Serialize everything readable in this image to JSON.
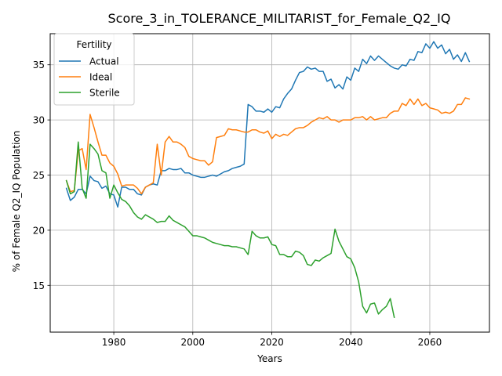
{
  "chart_data": {
    "type": "line",
    "title": "Score_3_in_TOLERANCE_MILITARIST_for_Female_Q2_IQ",
    "xlabel": "Years",
    "ylabel": "% of Female Q2_IQ Population",
    "xlim": [
      1963.9,
      2075.1
    ],
    "ylim": [
      10.76,
      37.82
    ],
    "xticks": [
      1980,
      2000,
      2020,
      2040,
      2060
    ],
    "yticks": [
      15,
      20,
      25,
      30,
      35
    ],
    "grid": true,
    "legend": {
      "title": "Fertility",
      "placement": "top-left"
    },
    "series": [
      {
        "name": "Actual",
        "color": "#1f77b4",
        "points": [
          [
            1968,
            23.8
          ],
          [
            1969,
            22.7
          ],
          [
            1970,
            23.0
          ],
          [
            1971,
            23.7
          ],
          [
            1972,
            23.7
          ],
          [
            1973,
            23.3
          ],
          [
            1974,
            24.9
          ],
          [
            1975,
            24.5
          ],
          [
            1976,
            24.4
          ],
          [
            1977,
            23.8
          ],
          [
            1978,
            24.0
          ],
          [
            1979,
            23.3
          ],
          [
            1980,
            23.2
          ],
          [
            1981,
            22.1
          ],
          [
            1982,
            23.9
          ],
          [
            1983,
            23.9
          ],
          [
            1984,
            23.7
          ],
          [
            1985,
            23.7
          ],
          [
            1986,
            23.3
          ],
          [
            1987,
            23.2
          ],
          [
            1988,
            23.9
          ],
          [
            1989,
            24.1
          ],
          [
            1990,
            24.2
          ],
          [
            1991,
            24.1
          ],
          [
            1992,
            25.4
          ],
          [
            1993,
            25.4
          ],
          [
            1994,
            25.6
          ],
          [
            1995,
            25.5
          ],
          [
            1996,
            25.5
          ],
          [
            1997,
            25.6
          ],
          [
            1998,
            25.2
          ],
          [
            1999,
            25.2
          ],
          [
            2000,
            25.0
          ],
          [
            2001,
            24.9
          ],
          [
            2002,
            24.8
          ],
          [
            2003,
            24.8
          ],
          [
            2004,
            24.9
          ],
          [
            2005,
            25.0
          ],
          [
            2006,
            24.9
          ],
          [
            2007,
            25.1
          ],
          [
            2008,
            25.3
          ],
          [
            2009,
            25.4
          ],
          [
            2010,
            25.6
          ],
          [
            2011,
            25.7
          ],
          [
            2012,
            25.8
          ],
          [
            2013,
            26.0
          ],
          [
            2014,
            31.4
          ],
          [
            2015,
            31.2
          ],
          [
            2016,
            30.8
          ],
          [
            2017,
            30.8
          ],
          [
            2018,
            30.7
          ],
          [
            2019,
            31.0
          ],
          [
            2020,
            30.7
          ],
          [
            2021,
            31.2
          ],
          [
            2022,
            31.1
          ],
          [
            2023,
            31.9
          ],
          [
            2024,
            32.4
          ],
          [
            2025,
            32.8
          ],
          [
            2026,
            33.6
          ],
          [
            2027,
            34.3
          ],
          [
            2028,
            34.4
          ],
          [
            2029,
            34.8
          ],
          [
            2030,
            34.6
          ],
          [
            2031,
            34.7
          ],
          [
            2032,
            34.4
          ],
          [
            2033,
            34.4
          ],
          [
            2034,
            33.5
          ],
          [
            2035,
            33.7
          ],
          [
            2036,
            32.9
          ],
          [
            2037,
            33.2
          ],
          [
            2038,
            32.8
          ],
          [
            2039,
            33.9
          ],
          [
            2040,
            33.6
          ],
          [
            2041,
            34.7
          ],
          [
            2042,
            34.4
          ],
          [
            2043,
            35.5
          ],
          [
            2044,
            35.1
          ],
          [
            2045,
            35.8
          ],
          [
            2046,
            35.4
          ],
          [
            2047,
            35.8
          ],
          [
            2048,
            35.5
          ],
          [
            2049,
            35.2
          ],
          [
            2050,
            34.9
          ],
          [
            2051,
            34.7
          ],
          [
            2052,
            34.6
          ],
          [
            2053,
            35.0
          ],
          [
            2054,
            34.9
          ],
          [
            2055,
            35.5
          ],
          [
            2056,
            35.4
          ],
          [
            2057,
            36.2
          ],
          [
            2058,
            36.1
          ],
          [
            2059,
            36.9
          ],
          [
            2060,
            36.5
          ],
          [
            2061,
            37.1
          ],
          [
            2062,
            36.5
          ],
          [
            2063,
            36.8
          ],
          [
            2064,
            36.0
          ],
          [
            2065,
            36.4
          ],
          [
            2066,
            35.5
          ],
          [
            2067,
            35.9
          ],
          [
            2068,
            35.3
          ],
          [
            2069,
            36.1
          ],
          [
            2070,
            35.3
          ]
        ]
      },
      {
        "name": "Ideal",
        "color": "#ff7f0e",
        "points": [
          [
            1968,
            24.5
          ],
          [
            1969,
            23.5
          ],
          [
            1970,
            23.6
          ],
          [
            1971,
            27.2
          ],
          [
            1972,
            27.4
          ],
          [
            1973,
            25.5
          ],
          [
            1974,
            30.5
          ],
          [
            1975,
            29.3
          ],
          [
            1976,
            28.0
          ],
          [
            1977,
            26.8
          ],
          [
            1978,
            26.8
          ],
          [
            1979,
            26.1
          ],
          [
            1980,
            25.8
          ],
          [
            1981,
            25.1
          ],
          [
            1982,
            24.0
          ],
          [
            1983,
            24.1
          ],
          [
            1984,
            24.1
          ],
          [
            1985,
            24.1
          ],
          [
            1986,
            23.8
          ],
          [
            1987,
            23.3
          ],
          [
            1988,
            23.9
          ],
          [
            1989,
            24.1
          ],
          [
            1990,
            24.3
          ],
          [
            1991,
            27.8
          ],
          [
            1992,
            25.0
          ],
          [
            1993,
            28.0
          ],
          [
            1994,
            28.5
          ],
          [
            1995,
            28.0
          ],
          [
            1996,
            28.0
          ],
          [
            1997,
            27.8
          ],
          [
            1998,
            27.5
          ],
          [
            1999,
            26.7
          ],
          [
            2000,
            26.5
          ],
          [
            2001,
            26.4
          ],
          [
            2002,
            26.3
          ],
          [
            2003,
            26.3
          ],
          [
            2004,
            25.9
          ],
          [
            2005,
            26.2
          ],
          [
            2006,
            28.4
          ],
          [
            2007,
            28.5
          ],
          [
            2008,
            28.6
          ],
          [
            2009,
            29.2
          ],
          [
            2010,
            29.1
          ],
          [
            2011,
            29.1
          ],
          [
            2012,
            29.0
          ],
          [
            2013,
            28.9
          ],
          [
            2014,
            28.9
          ],
          [
            2015,
            29.1
          ],
          [
            2016,
            29.1
          ],
          [
            2017,
            28.9
          ],
          [
            2018,
            28.8
          ],
          [
            2019,
            29.0
          ],
          [
            2020,
            28.3
          ],
          [
            2021,
            28.7
          ],
          [
            2022,
            28.5
          ],
          [
            2023,
            28.7
          ],
          [
            2024,
            28.6
          ],
          [
            2025,
            28.9
          ],
          [
            2026,
            29.2
          ],
          [
            2027,
            29.3
          ],
          [
            2028,
            29.3
          ],
          [
            2029,
            29.5
          ],
          [
            2030,
            29.8
          ],
          [
            2031,
            30.0
          ],
          [
            2032,
            30.2
          ],
          [
            2033,
            30.1
          ],
          [
            2034,
            30.3
          ],
          [
            2035,
            30.0
          ],
          [
            2036,
            30.0
          ],
          [
            2037,
            29.8
          ],
          [
            2038,
            30.0
          ],
          [
            2039,
            30.0
          ],
          [
            2040,
            30.0
          ],
          [
            2041,
            30.2
          ],
          [
            2042,
            30.2
          ],
          [
            2043,
            30.3
          ],
          [
            2044,
            30.0
          ],
          [
            2045,
            30.3
          ],
          [
            2046,
            30.0
          ],
          [
            2047,
            30.1
          ],
          [
            2048,
            30.2
          ],
          [
            2049,
            30.2
          ],
          [
            2050,
            30.6
          ],
          [
            2051,
            30.8
          ],
          [
            2052,
            30.8
          ],
          [
            2053,
            31.5
          ],
          [
            2054,
            31.3
          ],
          [
            2055,
            31.9
          ],
          [
            2056,
            31.4
          ],
          [
            2057,
            31.9
          ],
          [
            2058,
            31.3
          ],
          [
            2059,
            31.5
          ],
          [
            2060,
            31.1
          ],
          [
            2061,
            31.0
          ],
          [
            2062,
            30.9
          ],
          [
            2063,
            30.6
          ],
          [
            2064,
            30.7
          ],
          [
            2065,
            30.6
          ],
          [
            2066,
            30.8
          ],
          [
            2067,
            31.4
          ],
          [
            2068,
            31.4
          ],
          [
            2069,
            32.0
          ],
          [
            2070,
            31.9
          ]
        ]
      },
      {
        "name": "Sterile",
        "color": "#2ca02c",
        "points": [
          [
            1968,
            24.5
          ],
          [
            1969,
            23.3
          ],
          [
            1970,
            23.5
          ],
          [
            1971,
            28.0
          ],
          [
            1972,
            23.8
          ],
          [
            1973,
            22.9
          ],
          [
            1974,
            27.8
          ],
          [
            1975,
            27.4
          ],
          [
            1976,
            26.9
          ],
          [
            1977,
            25.4
          ],
          [
            1978,
            25.2
          ],
          [
            1979,
            22.9
          ],
          [
            1980,
            24.1
          ],
          [
            1981,
            23.4
          ],
          [
            1982,
            22.8
          ],
          [
            1983,
            22.6
          ],
          [
            1984,
            22.2
          ],
          [
            1985,
            21.6
          ],
          [
            1986,
            21.2
          ],
          [
            1987,
            21.0
          ],
          [
            1988,
            21.4
          ],
          [
            1989,
            21.2
          ],
          [
            1990,
            21.0
          ],
          [
            1991,
            20.7
          ],
          [
            1992,
            20.8
          ],
          [
            1993,
            20.8
          ],
          [
            1994,
            21.3
          ],
          [
            1995,
            20.9
          ],
          [
            1996,
            20.7
          ],
          [
            1997,
            20.5
          ],
          [
            1998,
            20.3
          ],
          [
            1999,
            19.9
          ],
          [
            2000,
            19.5
          ],
          [
            2001,
            19.5
          ],
          [
            2002,
            19.4
          ],
          [
            2003,
            19.3
          ],
          [
            2004,
            19.1
          ],
          [
            2005,
            18.9
          ],
          [
            2006,
            18.8
          ],
          [
            2007,
            18.7
          ],
          [
            2008,
            18.6
          ],
          [
            2009,
            18.6
          ],
          [
            2010,
            18.5
          ],
          [
            2011,
            18.5
          ],
          [
            2012,
            18.4
          ],
          [
            2013,
            18.3
          ],
          [
            2014,
            17.8
          ],
          [
            2015,
            19.9
          ],
          [
            2016,
            19.5
          ],
          [
            2017,
            19.3
          ],
          [
            2018,
            19.3
          ],
          [
            2019,
            19.4
          ],
          [
            2020,
            18.7
          ],
          [
            2021,
            18.6
          ],
          [
            2022,
            17.8
          ],
          [
            2023,
            17.8
          ],
          [
            2024,
            17.6
          ],
          [
            2025,
            17.6
          ],
          [
            2026,
            18.1
          ],
          [
            2027,
            18.0
          ],
          [
            2028,
            17.7
          ],
          [
            2029,
            16.9
          ],
          [
            2030,
            16.8
          ],
          [
            2031,
            17.3
          ],
          [
            2032,
            17.2
          ],
          [
            2033,
            17.5
          ],
          [
            2034,
            17.7
          ],
          [
            2035,
            17.9
          ],
          [
            2036,
            20.1
          ],
          [
            2037,
            19.0
          ],
          [
            2038,
            18.3
          ],
          [
            2039,
            17.6
          ],
          [
            2040,
            17.4
          ],
          [
            2041,
            16.6
          ],
          [
            2042,
            15.3
          ],
          [
            2043,
            13.1
          ],
          [
            2044,
            12.5
          ],
          [
            2045,
            13.3
          ],
          [
            2046,
            13.4
          ],
          [
            2047,
            12.4
          ],
          [
            2048,
            12.8
          ],
          [
            2049,
            13.1
          ],
          [
            2050,
            13.8
          ],
          [
            2051,
            12.1
          ]
        ]
      }
    ]
  }
}
